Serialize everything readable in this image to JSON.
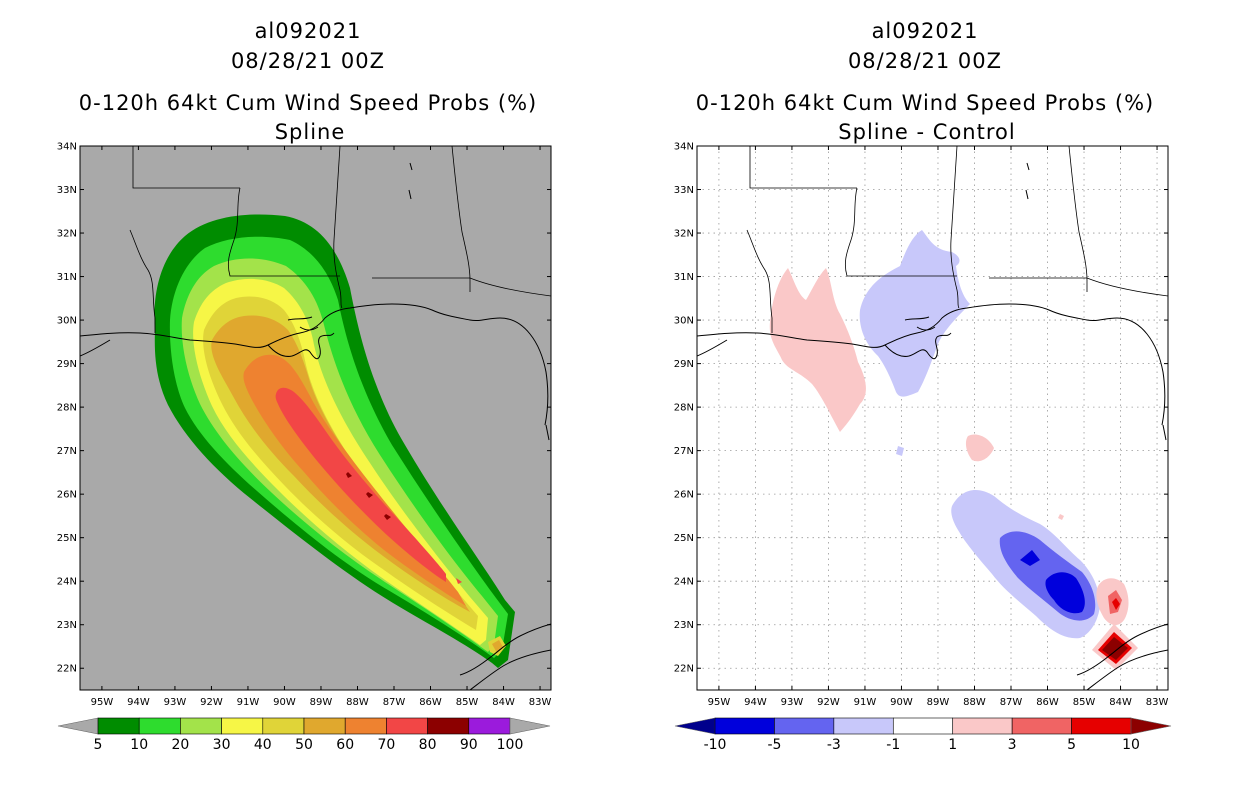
{
  "chart_data": [
    {
      "type": "heatmap",
      "storm_id": "al092021",
      "date": "08/28/21 00Z",
      "title": "0-120h 64kt Cum Wind Speed Probs (%)",
      "subtitle": "Spline",
      "xlabel": "",
      "ylabel": "",
      "xlim": [
        -95.6,
        -82.7
      ],
      "ylim": [
        21.5,
        34
      ],
      "x_ticks": [
        "95W",
        "94W",
        "93W",
        "92W",
        "91W",
        "90W",
        "89W",
        "88W",
        "87W",
        "86W",
        "85W",
        "84W",
        "83W"
      ],
      "y_ticks": [
        "22N",
        "23N",
        "24N",
        "25N",
        "26N",
        "27N",
        "28N",
        "29N",
        "30N",
        "31N",
        "32N",
        "33N",
        "34N"
      ],
      "grid": false,
      "background": "#a9a9a9",
      "colorbar": {
        "levels": [
          "5",
          "10",
          "20",
          "30",
          "40",
          "50",
          "60",
          "70",
          "80",
          "90",
          "100"
        ],
        "colors": [
          "#008c00",
          "#2edc2e",
          "#a3e34a",
          "#f6f646",
          "#e0d438",
          "#e0a82e",
          "#ee8230",
          "#f24646",
          "#8c0000",
          "#9b1bdc"
        ],
        "under_color": "#a9a9a9",
        "over_color": "#a9a9a9"
      }
    },
    {
      "type": "heatmap",
      "storm_id": "al092021",
      "date": "08/28/21 00Z",
      "title": "0-120h 64kt Cum Wind Speed Probs (%)",
      "subtitle": "Spline - Control",
      "xlabel": "",
      "ylabel": "",
      "xlim": [
        -95.6,
        -82.7
      ],
      "ylim": [
        21.5,
        34
      ],
      "x_ticks": [
        "95W",
        "94W",
        "93W",
        "92W",
        "91W",
        "90W",
        "89W",
        "88W",
        "87W",
        "86W",
        "85W",
        "84W",
        "83W"
      ],
      "y_ticks": [
        "22N",
        "23N",
        "24N",
        "25N",
        "26N",
        "27N",
        "28N",
        "29N",
        "30N",
        "31N",
        "32N",
        "33N",
        "34N"
      ],
      "grid": true,
      "background": "#ffffff",
      "colorbar": {
        "levels": [
          "-10",
          "-5",
          "-3",
          "-1",
          "1",
          "3",
          "5",
          "10"
        ],
        "colors": [
          "#0000dc",
          "#6464f0",
          "#c8c8fa",
          "#ffffff",
          "#fac8c8",
          "#f06464",
          "#e60000"
        ],
        "under_color": "#00008c",
        "over_color": "#8c0000"
      }
    }
  ]
}
